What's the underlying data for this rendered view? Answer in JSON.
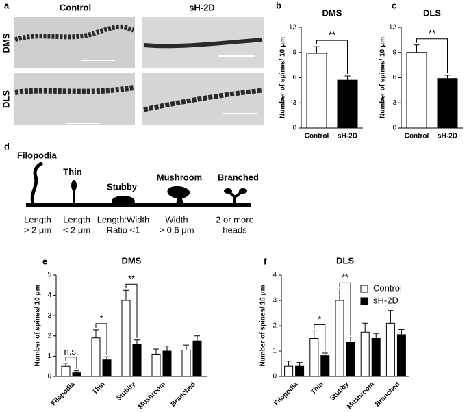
{
  "figure": {
    "panel_letters": [
      "a",
      "b",
      "c",
      "d",
      "e",
      "f"
    ],
    "micrographs": {
      "columns": [
        "Control",
        "sH-2D"
      ],
      "rows": [
        "DMS",
        "DLS"
      ]
    },
    "diagram": {
      "spines": [
        {
          "name": "Filopodia",
          "criteria": [
            "Length",
            "> 2 μm"
          ]
        },
        {
          "name": "Thin",
          "criteria": [
            "Length",
            "< 2 μm"
          ]
        },
        {
          "name": "Stubby",
          "criteria": [
            "Length:Width",
            "Ratio <1"
          ]
        },
        {
          "name": "Mushroom",
          "criteria": [
            "Width",
            "> 0.6 μm"
          ]
        },
        {
          "name": "Branched",
          "criteria": [
            "2 or more",
            "heads"
          ]
        }
      ]
    }
  },
  "chart_data": [
    {
      "type": "bar",
      "title": "DMS",
      "y_label": "Number of spines/ 10 μm",
      "categories": [
        "Control",
        "sH-2D"
      ],
      "values": [
        8.9,
        5.7
      ],
      "errors": [
        0.8,
        0.5
      ],
      "colors": [
        "#ffffff",
        "#000000"
      ],
      "ylim": [
        0,
        12
      ],
      "yticks": [
        0,
        3,
        6,
        9,
        12
      ],
      "annotations": [
        "**"
      ]
    },
    {
      "type": "bar",
      "title": "DLS",
      "y_label": "Number of spines/ 10 μm",
      "categories": [
        "Control",
        "sH-2D"
      ],
      "values": [
        9.0,
        5.9
      ],
      "errors": [
        0.9,
        0.4
      ],
      "colors": [
        "#ffffff",
        "#000000"
      ],
      "ylim": [
        0,
        12
      ],
      "yticks": [
        0,
        3,
        6,
        9,
        12
      ],
      "annotations": [
        "**"
      ]
    },
    {
      "type": "grouped-bar",
      "title": "DMS",
      "y_label": "Number of spines/ 10 μm",
      "categories": [
        "Filopodia",
        "Thin",
        "Stubby",
        "Mushroom",
        "Branched"
      ],
      "series": [
        {
          "color": "#ffffff",
          "values": [
            0.5,
            1.9,
            3.75,
            1.1,
            1.3
          ],
          "errors": [
            0.15,
            0.4,
            0.5,
            0.25,
            0.25
          ]
        },
        {
          "color": "#000000",
          "values": [
            0.18,
            0.82,
            1.6,
            1.25,
            1.75
          ],
          "errors": [
            0.1,
            0.15,
            0.2,
            0.25,
            0.25
          ]
        }
      ],
      "ylim": [
        0,
        5
      ],
      "yticks": [
        0,
        1,
        2,
        3,
        4,
        5
      ],
      "annotations": [
        "n.s.",
        "*",
        "**"
      ]
    },
    {
      "type": "grouped-bar",
      "title": "DLS",
      "y_label": "Number of spines/ 10 μm",
      "categories": [
        "Filopodia",
        "Thin",
        "Stubby",
        "Mushroom",
        "Branched"
      ],
      "series": [
        {
          "name": "Control",
          "color": "#ffffff",
          "values": [
            0.4,
            1.5,
            3.0,
            1.75,
            2.1
          ],
          "errors": [
            0.2,
            0.3,
            0.45,
            0.35,
            0.5
          ]
        },
        {
          "name": "sH-2D",
          "color": "#000000",
          "values": [
            0.4,
            0.82,
            1.35,
            1.5,
            1.65
          ],
          "errors": [
            0.15,
            0.1,
            0.2,
            0.2,
            0.2
          ]
        }
      ],
      "ylim": [
        0,
        4
      ],
      "yticks": [
        0,
        1,
        2,
        3,
        4
      ],
      "annotations": [
        "*",
        "**"
      ],
      "legend": "upper right"
    }
  ]
}
